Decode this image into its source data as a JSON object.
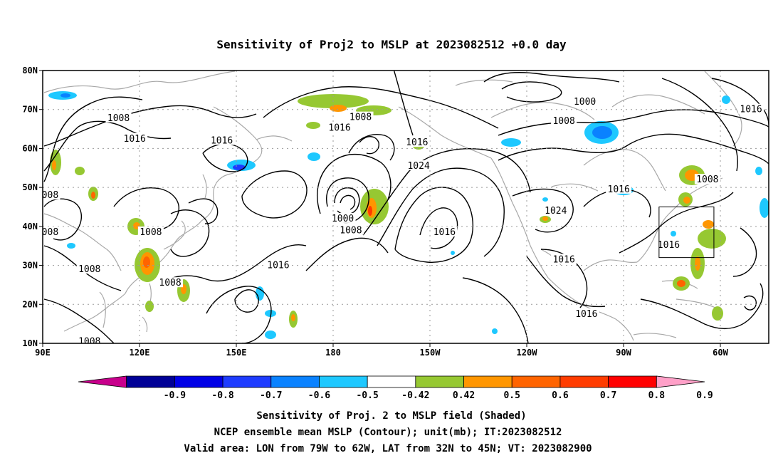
{
  "chart_data": {
    "type": "contour",
    "title": "Sensitivity of Proj2 to MSLP at 2023082512 +0.0 day",
    "x_ticks": [
      "90E",
      "120E",
      "150E",
      "180",
      "150W",
      "120W",
      "90W",
      "60W"
    ],
    "y_ticks": [
      "10N",
      "20N",
      "30N",
      "40N",
      "50N",
      "60N",
      "70N",
      "80N"
    ],
    "xlim_lon_east": [
      90,
      315
    ],
    "ylim_lat": [
      10,
      80
    ],
    "grid": true,
    "colorbar": {
      "levels": [
        "-0.9",
        "-0.8",
        "-0.7",
        "-0.6",
        "-0.5",
        "-0.42",
        "0.42",
        "0.5",
        "0.6",
        "0.7",
        "0.8",
        "0.9"
      ],
      "colors": [
        "#c8008c",
        "#000096",
        "#0000e6",
        "#1e3cff",
        "#0a82ff",
        "#1ec8ff",
        "#ffffff",
        "#96c832",
        "#ff9600",
        "#ff6400",
        "#ff3c00",
        "#ff0000",
        "#ffa0c8"
      ]
    },
    "contour_labels": [
      {
        "text": "1008",
        "lon": 113.5,
        "lat": 67.8
      },
      {
        "text": "1016",
        "lon": 118.5,
        "lat": 62.5
      },
      {
        "text": "008",
        "lon": 92.3,
        "lat": 48.0
      },
      {
        "text": "008",
        "lon": 92.3,
        "lat": 38.5
      },
      {
        "text": "1008",
        "lon": 123.5,
        "lat": 38.5
      },
      {
        "text": "1008",
        "lon": 104.5,
        "lat": 29.0
      },
      {
        "text": "1008",
        "lon": 129.5,
        "lat": 25.5
      },
      {
        "text": "1008",
        "lon": 104.5,
        "lat": 10.5
      },
      {
        "text": "1016",
        "lon": 145.5,
        "lat": 62.0
      },
      {
        "text": "1016",
        "lon": 163.0,
        "lat": 30.0
      },
      {
        "text": "1016",
        "lon": 182.0,
        "lat": 65.3
      },
      {
        "text": "1008",
        "lon": 188.5,
        "lat": 68.0
      },
      {
        "text": "1016",
        "lon": 206.0,
        "lat": 61.5
      },
      {
        "text": "1024",
        "lon": 206.5,
        "lat": 55.5
      },
      {
        "text": "1000",
        "lon": 183.0,
        "lat": 42.0
      },
      {
        "text": "1008",
        "lon": 185.5,
        "lat": 39.0
      },
      {
        "text": "1016",
        "lon": 214.5,
        "lat": 38.5
      },
      {
        "text": "1000",
        "lon": 258.0,
        "lat": 72.0
      },
      {
        "text": "1008",
        "lon": 251.5,
        "lat": 67.0
      },
      {
        "text": "1024",
        "lon": 249.0,
        "lat": 44.0
      },
      {
        "text": "1016",
        "lon": 251.5,
        "lat": 31.5
      },
      {
        "text": "1016",
        "lon": 268.5,
        "lat": 49.5
      },
      {
        "text": "1016",
        "lon": 284.0,
        "lat": 35.2
      },
      {
        "text": "1008",
        "lon": 296.0,
        "lat": 52.0
      },
      {
        "text": "1016",
        "lon": 309.5,
        "lat": 70.0
      },
      {
        "text": "1016",
        "lon": 258.5,
        "lat": 17.5
      }
    ],
    "valid_box": {
      "lon": [
        281,
        298
      ],
      "lat": [
        32,
        45
      ]
    }
  },
  "caption": {
    "line1": "Sensitivity of Proj. 2 to MSLP field (Shaded)",
    "line2": "NCEP ensemble mean MSLP (Contour); unit(mb); IT:2023082512",
    "line3": "Valid area: LON from 79W to 62W, LAT from 32N to 45N; VT: 2023082900"
  }
}
